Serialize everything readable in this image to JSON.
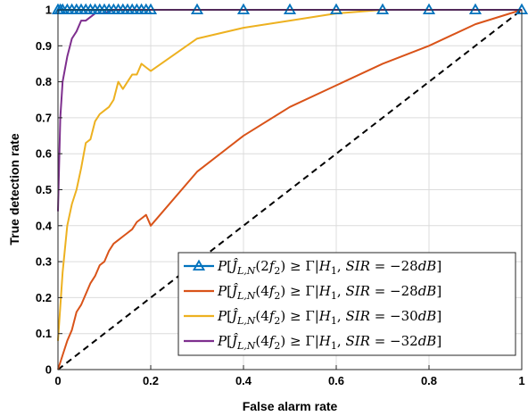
{
  "chart_data": {
    "type": "line",
    "title": "",
    "xlabel": "False alarm rate",
    "ylabel": "True detection rate",
    "xlim": [
      0,
      1
    ],
    "ylim": [
      0,
      1
    ],
    "xticks": [
      "0",
      "0.2",
      "0.4",
      "0.6",
      "0.8",
      "1"
    ],
    "yticks": [
      "0",
      "0.1",
      "0.2",
      "0.3",
      "0.4",
      "0.5",
      "0.6",
      "0.7",
      "0.8",
      "0.9",
      "1"
    ],
    "grid": true,
    "legend_position": "bottom-right",
    "series": [
      {
        "name": "P[ĴL,N(2f2) ≥ Γ|H1, SIR = −28dB]",
        "color": "#0072BD",
        "marker": "triangle",
        "x": [
          0,
          0.005,
          0.01,
          0.02,
          0.03,
          0.04,
          0.05,
          0.06,
          0.07,
          0.08,
          0.09,
          0.1,
          0.11,
          0.12,
          0.13,
          0.14,
          0.15,
          0.16,
          0.17,
          0.18,
          0.19,
          0.2,
          0.3,
          0.4,
          0.5,
          0.6,
          0.7,
          0.8,
          0.9,
          1.0
        ],
        "y": [
          1,
          1,
          1,
          1,
          1,
          1,
          1,
          1,
          1,
          1,
          1,
          1,
          1,
          1,
          1,
          1,
          1,
          1,
          1,
          1,
          1,
          1,
          1,
          1,
          1,
          1,
          1,
          1,
          1,
          1
        ]
      },
      {
        "name": "P[ĴL,N(4f2) ≥ Γ|H1, SIR = −28dB]",
        "color": "#D95319",
        "marker": "none",
        "x": [
          0,
          0.01,
          0.02,
          0.03,
          0.04,
          0.05,
          0.06,
          0.07,
          0.08,
          0.09,
          0.1,
          0.11,
          0.12,
          0.13,
          0.14,
          0.15,
          0.16,
          0.17,
          0.18,
          0.19,
          0.2,
          0.3,
          0.4,
          0.5,
          0.6,
          0.7,
          0.8,
          0.9,
          1.0
        ],
        "y": [
          0,
          0.04,
          0.08,
          0.11,
          0.16,
          0.18,
          0.21,
          0.24,
          0.26,
          0.29,
          0.3,
          0.33,
          0.35,
          0.36,
          0.37,
          0.38,
          0.39,
          0.41,
          0.42,
          0.43,
          0.4,
          0.55,
          0.65,
          0.73,
          0.79,
          0.85,
          0.9,
          0.96,
          1.0
        ]
      },
      {
        "name": "P[ĴL,N(4f2) ≥ Γ|H1, SIR = −30dB]",
        "color": "#EDB120",
        "marker": "none",
        "x": [
          0,
          0.01,
          0.02,
          0.03,
          0.04,
          0.05,
          0.06,
          0.07,
          0.08,
          0.09,
          0.1,
          0.11,
          0.12,
          0.13,
          0.14,
          0.15,
          0.16,
          0.17,
          0.18,
          0.19,
          0.2,
          0.3,
          0.4,
          0.5,
          0.6,
          0.7,
          0.8,
          0.9,
          1.0
        ],
        "y": [
          0.08,
          0.27,
          0.4,
          0.46,
          0.5,
          0.56,
          0.63,
          0.64,
          0.69,
          0.71,
          0.72,
          0.73,
          0.75,
          0.8,
          0.78,
          0.8,
          0.82,
          0.82,
          0.85,
          0.84,
          0.83,
          0.92,
          0.95,
          0.97,
          0.99,
          1.0,
          1.0,
          1.0,
          1.0
        ]
      },
      {
        "name": "P[ĴL,N(4f2) ≥ Γ|H1, SIR = −32dB]",
        "color": "#7E2F8E",
        "marker": "none",
        "x": [
          0,
          0.005,
          0.01,
          0.02,
          0.03,
          0.04,
          0.05,
          0.06,
          0.07,
          0.08,
          0.09,
          0.1,
          0.12,
          0.15,
          0.2,
          0.3,
          0.4,
          0.5,
          0.6,
          0.7,
          0.8,
          0.9,
          1.0
        ],
        "y": [
          0.44,
          0.7,
          0.8,
          0.87,
          0.92,
          0.94,
          0.97,
          0.97,
          0.98,
          0.99,
          0.99,
          0.99,
          1.0,
          1.0,
          1.0,
          1.0,
          1.0,
          1.0,
          1.0,
          1.0,
          1.0,
          1.0,
          1.0
        ]
      },
      {
        "name": "",
        "color": "#000000",
        "marker": "none",
        "dashed": true,
        "x": [
          0,
          1
        ],
        "y": [
          0,
          1
        ]
      }
    ]
  }
}
